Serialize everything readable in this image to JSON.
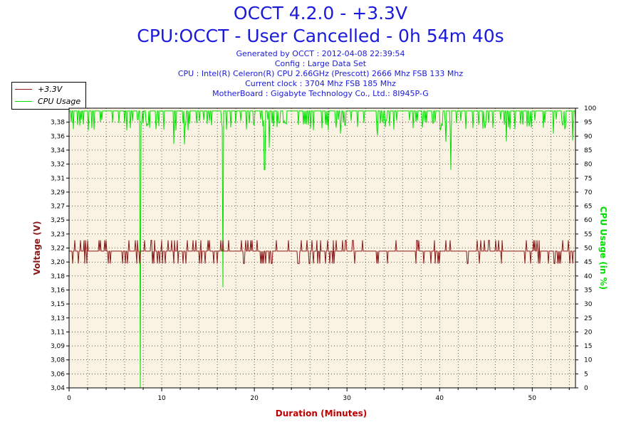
{
  "header": {
    "title_line1": "OCCT 4.2.0 - +3.3V",
    "title_line2": "CPU:OCCT - User Cancelled - 0h 54m 40s",
    "info": [
      "Generated by OCCT : 2012-04-08 22:39:54",
      "Config : Large Data Set",
      "CPU : Intel(R) Celeron(R) CPU 2.66GHz (Prescott) 2666 Mhz FSB 133 Mhz",
      "Current clock : 3704 Mhz FSB 185 Mhz",
      "MotherBoard : Gigabyte Technology Co., Ltd.: 8I945P-G"
    ]
  },
  "legend": [
    {
      "label": "+3.3V",
      "color": "#8b1a1a"
    },
    {
      "label": "CPU Usage",
      "color": "#00e000"
    }
  ],
  "colors": {
    "plot_bg": "#faf3e3",
    "voltage": "#8b1a1a",
    "cpu": "#00e000",
    "title": "#1a1adb",
    "xlabel": "#c00000"
  },
  "chart_data": {
    "type": "line",
    "xlabel": "Duration (Minutes)",
    "ylabel_left": "Voltage (V)",
    "ylabel_right": "CPU Usage (in %)",
    "xlim": [
      0,
      54.67
    ],
    "ylim_left": [
      3.04,
      3.4
    ],
    "ylim_right": [
      0,
      100
    ],
    "x_ticks": [
      "0",
      "10",
      "20",
      "30",
      "40",
      "50"
    ],
    "y_ticks_left": [
      "3,04",
      "3,06",
      "3,08",
      "3,09",
      "3,11",
      "3,13",
      "3,15",
      "3,16",
      "3,18",
      "3,20",
      "3,22",
      "3,23",
      "3,25",
      "3,27",
      "3,29",
      "3,31",
      "3,32",
      "3,34",
      "3,36",
      "3,38"
    ],
    "y_ticks_right": [
      "0",
      "5",
      "10",
      "15",
      "20",
      "25",
      "30",
      "35",
      "40",
      "45",
      "50",
      "55",
      "60",
      "65",
      "70",
      "75",
      "80",
      "85",
      "90",
      "95",
      "100"
    ],
    "grid": true,
    "series": [
      {
        "name": "+3.3V",
        "baseline": 3.216,
        "range": [
          3.2,
          3.23
        ],
        "x": [
          0,
          8,
          16,
          24,
          32,
          40,
          48,
          54.67
        ],
        "values": [
          3.216,
          3.216,
          3.216,
          3.216,
          3.216,
          3.216,
          3.216,
          3.216
        ]
      },
      {
        "name": "CPU Usage",
        "baseline": 99,
        "dips": [
          {
            "x": 7.7,
            "value": 0
          },
          {
            "x": 16.6,
            "value": 36
          },
          {
            "x": 21.1,
            "value": 78
          },
          {
            "x": 40.7,
            "value": 88
          },
          {
            "x": 41.2,
            "value": 78
          }
        ]
      }
    ]
  }
}
